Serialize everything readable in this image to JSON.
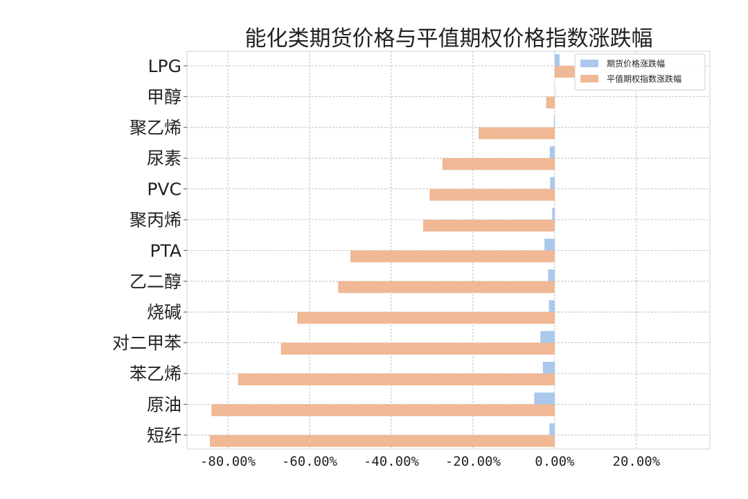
{
  "chart_data": {
    "type": "bar",
    "orientation": "horizontal",
    "title": "能化类期货价格与平值期权价格指数涨跌幅",
    "categories": [
      "LPG",
      "甲醇",
      "聚乙烯",
      "尿素",
      "PVC",
      "聚丙烯",
      "PTA",
      "乙二醇",
      "烧碱",
      "对二甲苯",
      "苯乙烯",
      "原油",
      "短纤"
    ],
    "series": [
      {
        "name": "期货价格涨跌幅",
        "color": "#a9c8ec",
        "values": [
          0.012,
          0.0,
          -0.002,
          -0.012,
          -0.011,
          -0.006,
          -0.025,
          -0.016,
          -0.014,
          -0.035,
          -0.029,
          -0.05,
          -0.013
        ]
      },
      {
        "name": "平值期权指数涨跌幅",
        "color": "#f0b894",
        "values": [
          0.049,
          -0.021,
          -0.186,
          -0.275,
          -0.306,
          -0.322,
          -0.5,
          -0.53,
          -0.63,
          -0.67,
          -0.775,
          -0.84,
          -0.844
        ]
      }
    ],
    "xlim": [
      -0.9,
      0.38
    ],
    "xticks": [
      -0.8,
      -0.6,
      -0.4,
      -0.2,
      0.0,
      0.2
    ],
    "xtick_labels": [
      "-80.00%",
      "-60.00%",
      "-40.00%",
      "-20.00%",
      "0.00%",
      "20.00%"
    ],
    "grid": true,
    "legend_position": "top-right"
  }
}
